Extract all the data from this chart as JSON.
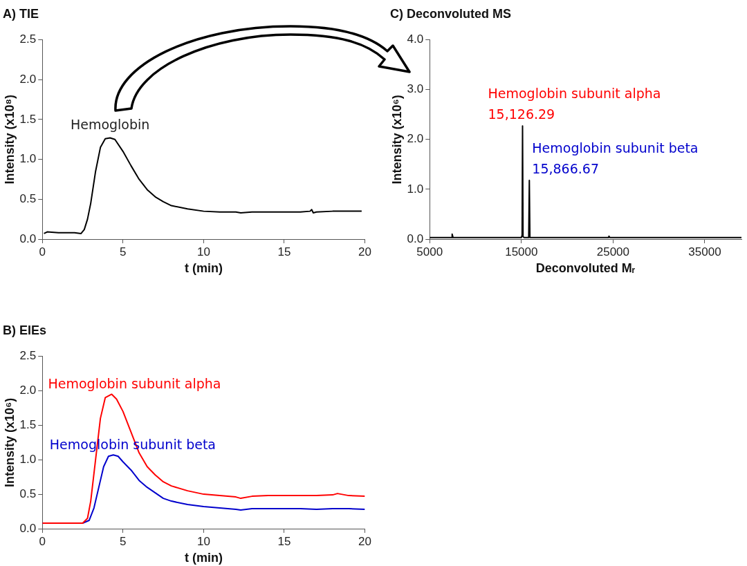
{
  "chart_data": [
    {
      "type": "line",
      "title": "A) TIE",
      "xlabel": "t (min)",
      "ylabel": "Intensity (x10⁸)",
      "xlim": [
        0,
        20
      ],
      "xticks": [
        0,
        5,
        10,
        15,
        20
      ],
      "ylim": [
        0,
        2.5
      ],
      "yticks": [
        {
          "value": 0,
          "label": "0.0"
        },
        {
          "value": 0.5,
          "label": "0.5"
        },
        {
          "value": 1,
          "label": "1.0"
        },
        {
          "value": 1.5,
          "label": "1.5"
        },
        {
          "value": 2,
          "label": "2.0"
        },
        {
          "value": 2.5,
          "label": "2.5"
        }
      ],
      "grid": false,
      "legend": false,
      "annotations": [
        {
          "text": "Hemoglobin",
          "x": 4.2,
          "y": 1.27
        }
      ],
      "series": [
        {
          "color": "#000000",
          "x": [
            0.1,
            0.3,
            1,
            2,
            2.4,
            2.6,
            2.8,
            3,
            3.3,
            3.6,
            3.9,
            4.2,
            4.5,
            5,
            5.5,
            6,
            6.5,
            7,
            7.5,
            8,
            9,
            10,
            11,
            12,
            12.3,
            13,
            14,
            15,
            16,
            16.6,
            16.7,
            16.8,
            17,
            18,
            19,
            19.8
          ],
          "values": [
            0.07,
            0.09,
            0.08,
            0.08,
            0.07,
            0.12,
            0.25,
            0.45,
            0.85,
            1.15,
            1.26,
            1.27,
            1.25,
            1.1,
            0.92,
            0.75,
            0.62,
            0.53,
            0.47,
            0.42,
            0.38,
            0.35,
            0.34,
            0.34,
            0.33,
            0.34,
            0.34,
            0.34,
            0.34,
            0.35,
            0.37,
            0.33,
            0.34,
            0.35,
            0.35,
            0.35
          ]
        }
      ]
    },
    {
      "type": "line",
      "title": "B) EIEs",
      "xlabel": "t (min)",
      "ylabel": "Intensity (x10⁶)",
      "xlim": [
        0,
        20
      ],
      "xticks": [
        0,
        5,
        10,
        15,
        20
      ],
      "ylim": [
        0,
        2.5
      ],
      "yticks": [
        {
          "value": 0,
          "label": "0.0"
        },
        {
          "value": 0.5,
          "label": "0.5"
        },
        {
          "value": 1,
          "label": "1.0"
        },
        {
          "value": 1.5,
          "label": "1.5"
        },
        {
          "value": 2,
          "label": "2.0"
        },
        {
          "value": 2.5,
          "label": "2.5"
        }
      ],
      "grid": false,
      "legend": false,
      "series": [
        {
          "name": "Hemoglobin subunit alpha",
          "color": "#ff0000",
          "x": [
            0,
            2.5,
            2.8,
            3,
            3.3,
            3.6,
            3.9,
            4.3,
            4.6,
            5,
            5.5,
            6,
            6.5,
            7,
            7.5,
            8,
            9,
            10,
            11,
            12,
            12.3,
            13,
            14,
            15,
            16,
            17,
            18,
            18.3,
            19,
            20
          ],
          "values": [
            0.08,
            0.08,
            0.15,
            0.4,
            1.0,
            1.6,
            1.9,
            1.95,
            1.88,
            1.7,
            1.4,
            1.1,
            0.9,
            0.78,
            0.68,
            0.62,
            0.55,
            0.5,
            0.48,
            0.46,
            0.44,
            0.47,
            0.48,
            0.48,
            0.48,
            0.48,
            0.49,
            0.51,
            0.48,
            0.47
          ]
        },
        {
          "name": "Hemoglobin subunit beta",
          "color": "#0000cc",
          "x": [
            0,
            2.5,
            2.9,
            3.2,
            3.5,
            3.8,
            4.1,
            4.4,
            4.7,
            5,
            5.5,
            6,
            6.5,
            7,
            7.5,
            8,
            9,
            10,
            11,
            12,
            12.3,
            13,
            14,
            15,
            16,
            17,
            18,
            19,
            20
          ],
          "values": [
            0.08,
            0.08,
            0.12,
            0.3,
            0.6,
            0.9,
            1.05,
            1.07,
            1.05,
            0.97,
            0.85,
            0.7,
            0.6,
            0.52,
            0.44,
            0.4,
            0.35,
            0.32,
            0.3,
            0.28,
            0.27,
            0.29,
            0.29,
            0.29,
            0.29,
            0.28,
            0.29,
            0.29,
            0.28
          ]
        }
      ]
    },
    {
      "type": "line",
      "title": "C) Deconvoluted MS",
      "xlabel": "Deconvoluted Mᵣ",
      "ylabel": "Intensity (x10⁶)",
      "xlim": [
        5000,
        39000
      ],
      "xticks": [
        5000,
        15000,
        25000,
        35000
      ],
      "ylim": [
        0,
        4
      ],
      "yticks": [
        {
          "value": 0,
          "label": "0.0"
        },
        {
          "value": 1,
          "label": "1.0"
        },
        {
          "value": 2,
          "label": "2.0"
        },
        {
          "value": 3,
          "label": "3.0"
        },
        {
          "value": 4,
          "label": "4.0"
        }
      ],
      "grid": false,
      "legend": false,
      "annotations": [
        {
          "text": "Hemoglobin subunit alpha\n15,126.29",
          "x": 15126.29,
          "y": 2.27
        },
        {
          "text": "Hemoglobin subunit beta\n15,866.67",
          "x": 15866.67,
          "y": 1.18
        }
      ],
      "series": [
        {
          "color": "#000000",
          "x": [
            5000,
            7400,
            7450,
            7550,
            15000,
            15080,
            15126.29,
            15180,
            15300,
            15800,
            15866.67,
            15930,
            24500,
            24550,
            24650,
            39000
          ],
          "values": [
            0.03,
            0.03,
            0.1,
            0.03,
            0.03,
            0.08,
            2.27,
            0.05,
            0.03,
            0.03,
            1.18,
            0.03,
            0.03,
            0.06,
            0.03,
            0.03
          ]
        }
      ]
    }
  ]
}
